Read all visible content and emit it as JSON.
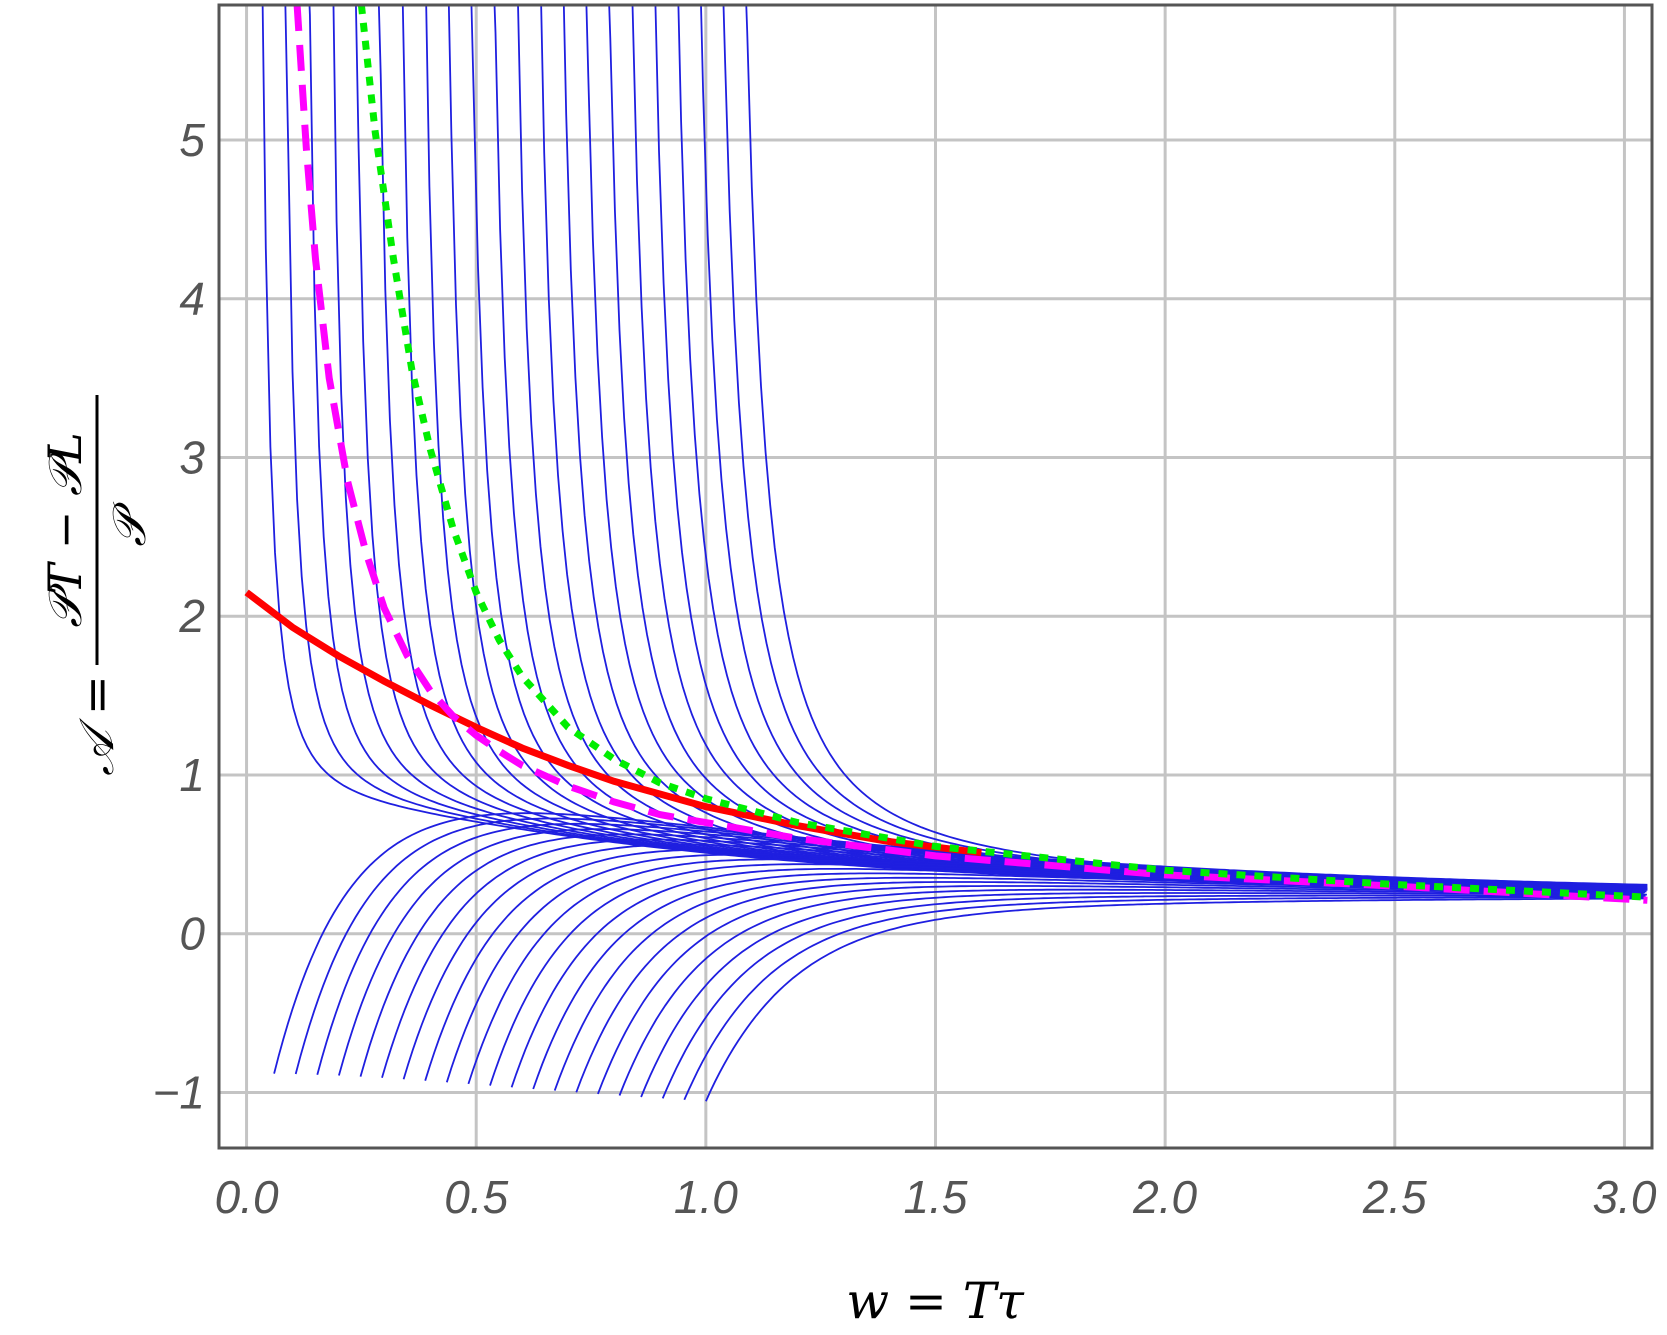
{
  "chart_data": {
    "type": "line",
    "title": "",
    "xlabel": "w = Tτ",
    "ylabel_lhs": "𝒜 =",
    "ylabel_numerator": "𝒫T − 𝒫L",
    "ylabel_denominator": "𝒫",
    "xlim": [
      -0.06,
      3.06
    ],
    "ylim": [
      -1.35,
      5.85
    ],
    "x_ticks": [
      "0.0",
      "0.5",
      "1.0",
      "1.5",
      "2.0",
      "2.5",
      "3.0"
    ],
    "x_tick_values": [
      0.0,
      0.5,
      1.0,
      1.5,
      2.0,
      2.5,
      3.0
    ],
    "y_ticks": [
      "−1",
      "0",
      "1",
      "2",
      "3",
      "4",
      "5"
    ],
    "y_tick_values": [
      -1,
      0,
      1,
      2,
      3,
      4,
      5
    ],
    "grid": true,
    "colors": {
      "family": "#1f1fe0",
      "solid": "#ff0000",
      "dashed": "#ff00ff",
      "dotted": "#00ee00",
      "grid": "#c4c4c4",
      "frame": "#555555"
    },
    "series": [
      {
        "style": "solid",
        "color": "#ff0000",
        "x": [
          0.0,
          0.1,
          0.2,
          0.3,
          0.4,
          0.5,
          0.6,
          0.7,
          0.8,
          1.0,
          1.2,
          1.4,
          1.6
        ],
        "y": [
          2.15,
          1.93,
          1.75,
          1.59,
          1.44,
          1.3,
          1.17,
          1.06,
          0.96,
          0.8,
          0.68,
          0.58,
          0.51
        ]
      },
      {
        "style": "dashed",
        "color": "#ff00ff",
        "x": [
          0.11,
          0.13,
          0.15,
          0.18,
          0.22,
          0.26,
          0.3,
          0.35,
          0.4,
          0.45,
          0.5,
          0.55,
          0.6,
          0.7,
          0.8,
          0.9,
          1.0,
          1.2,
          1.5,
          2.0,
          2.5,
          3.05
        ],
        "y": [
          5.85,
          4.95,
          4.25,
          3.5,
          2.85,
          2.4,
          2.05,
          1.75,
          1.53,
          1.37,
          1.25,
          1.15,
          1.06,
          0.93,
          0.83,
          0.75,
          0.7,
          0.6,
          0.49,
          0.37,
          0.3,
          0.21
        ]
      },
      {
        "style": "dotted",
        "color": "#00ee00",
        "x": [
          0.25,
          0.28,
          0.32,
          0.36,
          0.4,
          0.45,
          0.5,
          0.55,
          0.6,
          0.7,
          0.8,
          0.9,
          1.0,
          1.2,
          1.5,
          2.0,
          2.5,
          3.05
        ],
        "y": [
          5.85,
          5.05,
          4.25,
          3.55,
          3.05,
          2.55,
          2.15,
          1.85,
          1.62,
          1.3,
          1.1,
          0.95,
          0.85,
          0.7,
          0.55,
          0.4,
          0.31,
          0.23
        ]
      }
    ],
    "family": {
      "count": 43,
      "color": "#1f1fe0",
      "note": "family of thin curves converging toward ~0.25 at w ≈ 2.5–3.0; upper branches diverge near small w, lower branches start at −1.2"
    }
  }
}
